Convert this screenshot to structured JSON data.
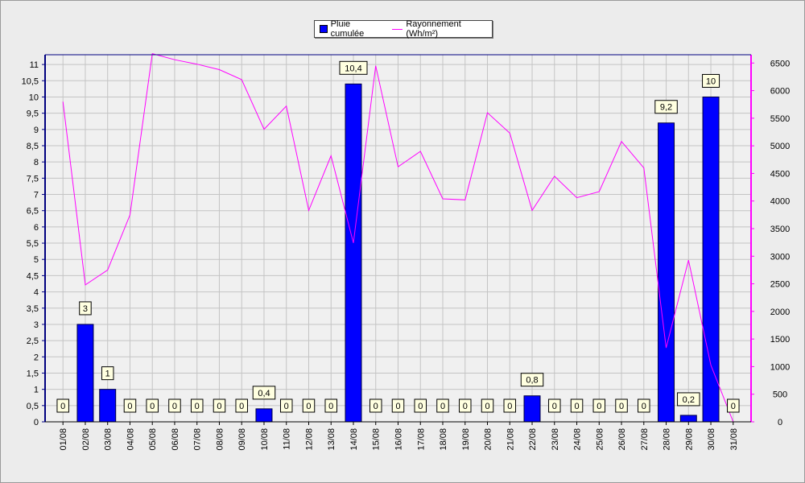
{
  "chart_data": {
    "type": "bar",
    "categories": [
      "01/08",
      "02/08",
      "03/08",
      "04/08",
      "05/08",
      "06/08",
      "07/08",
      "08/08",
      "09/08",
      "10/08",
      "11/08",
      "12/08",
      "13/08",
      "14/08",
      "15/08",
      "16/08",
      "17/08",
      "18/08",
      "19/08",
      "20/08",
      "21/08",
      "22/08",
      "23/08",
      "24/08",
      "25/08",
      "26/08",
      "27/08",
      "28/08",
      "29/08",
      "30/08",
      "31/08"
    ],
    "series": [
      {
        "name": "Pluie cumulée",
        "type": "bar",
        "axis": "left",
        "color": "#0000ff",
        "values": [
          0,
          3,
          1,
          0,
          0,
          0,
          0,
          0,
          0,
          0.4,
          0,
          0,
          0,
          10.4,
          0,
          0,
          0,
          0,
          0,
          0,
          0,
          0.8,
          0,
          0,
          0,
          0,
          0,
          9.2,
          0.2,
          10,
          0
        ],
        "labels": [
          "0",
          "3",
          "1",
          "0",
          "0",
          "0",
          "0",
          "0",
          "0",
          "0,4",
          "0",
          "0",
          "0",
          "10,4",
          "0",
          "0",
          "0",
          "0",
          "0",
          "0",
          "0",
          "0,8",
          "0",
          "0",
          "0",
          "0",
          "0",
          "9,2",
          "0,2",
          "10",
          "0"
        ]
      },
      {
        "name": "Rayonnement (Wh/m²)",
        "type": "line",
        "axis": "right",
        "color": "#ff00ff",
        "values": [
          5800,
          2480,
          2750,
          3750,
          6670,
          6560,
          6480,
          6380,
          6200,
          5300,
          5720,
          3830,
          4820,
          3240,
          6450,
          4620,
          4900,
          4040,
          4020,
          5600,
          5230,
          3830,
          4450,
          4060,
          4170,
          5080,
          4600,
          1340,
          2930,
          1030,
          0
        ]
      }
    ],
    "yticks_left": [
      "0",
      "0,5",
      "1",
      "1,5",
      "2",
      "2,5",
      "3",
      "3,5",
      "4",
      "4,5",
      "5",
      "5,5",
      "6",
      "6,5",
      "7",
      "7,5",
      "8",
      "8,5",
      "9",
      "9,5",
      "10",
      "10,5",
      "11"
    ],
    "yticks_right": [
      "0",
      "500",
      "1000",
      "1500",
      "2000",
      "2500",
      "3000",
      "3500",
      "4000",
      "4500",
      "5000",
      "5500",
      "6000",
      "6500"
    ],
    "ylim_left": [
      0,
      11.3
    ],
    "ylim_right": [
      0,
      6650
    ],
    "grid": true,
    "legend_position": "top-center"
  },
  "legend": {
    "rain": "Pluie cumulée",
    "radiation": "Rayonnement (Wh/m²)"
  }
}
